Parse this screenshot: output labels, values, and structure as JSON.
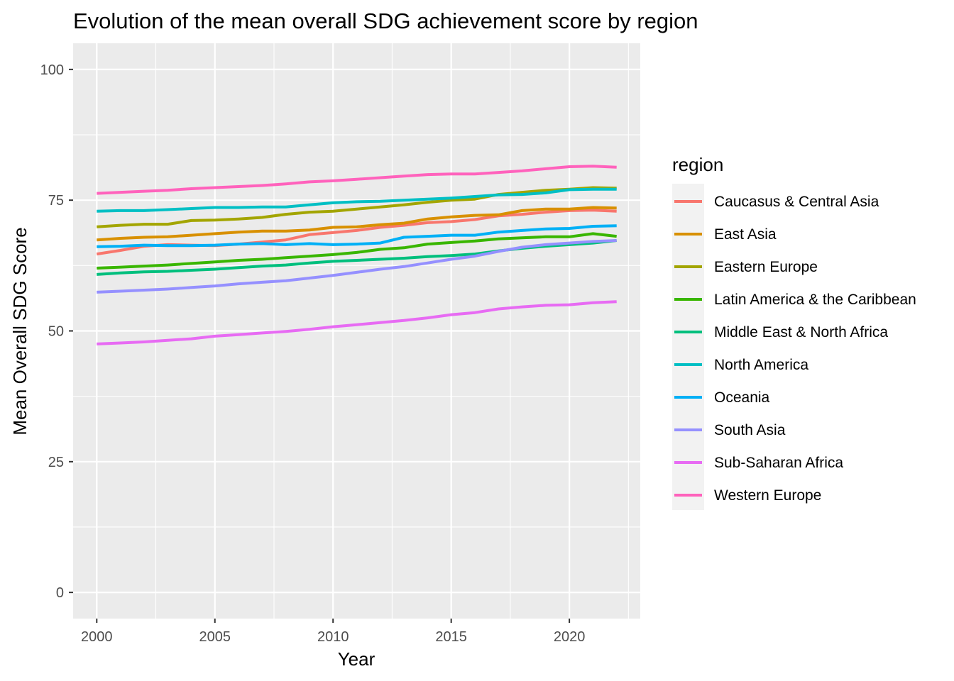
{
  "chart_data": {
    "type": "line",
    "title": "Evolution of the mean overall SDG achievement score by region",
    "xlabel": "Year",
    "ylabel": "Mean Overall SDG Score",
    "xlim": [
      1999,
      2023
    ],
    "ylim": [
      -5,
      105
    ],
    "x_ticks": [
      2000,
      2005,
      2010,
      2015,
      2020
    ],
    "y_ticks": [
      0,
      25,
      50,
      75,
      100
    ],
    "grid": true,
    "legend_title": "region",
    "legend_position": "right",
    "x": [
      2000,
      2001,
      2002,
      2003,
      2004,
      2005,
      2006,
      2007,
      2008,
      2009,
      2010,
      2011,
      2012,
      2013,
      2014,
      2015,
      2016,
      2017,
      2018,
      2019,
      2020,
      2021,
      2022
    ],
    "series": [
      {
        "name": "Caucasus & Central Asia",
        "color": "#F8766D",
        "values": [
          64.7,
          65.4,
          66.2,
          66.5,
          66.4,
          66.3,
          66.6,
          67.0,
          67.4,
          68.4,
          68.8,
          69.2,
          69.8,
          70.2,
          70.7,
          70.9,
          71.3,
          72.0,
          72.3,
          72.7,
          73.0,
          73.1,
          72.9
        ]
      },
      {
        "name": "East Asia",
        "color": "#D89000",
        "values": [
          67.4,
          67.7,
          67.9,
          68.0,
          68.3,
          68.6,
          68.9,
          69.1,
          69.1,
          69.3,
          69.8,
          69.9,
          70.3,
          70.6,
          71.4,
          71.8,
          72.1,
          72.2,
          73.0,
          73.3,
          73.3,
          73.6,
          73.5
        ]
      },
      {
        "name": "Eastern Europe",
        "color": "#A3A500",
        "values": [
          69.9,
          70.2,
          70.4,
          70.4,
          71.1,
          71.2,
          71.4,
          71.7,
          72.3,
          72.7,
          72.9,
          73.3,
          73.7,
          74.1,
          74.6,
          75.0,
          75.2,
          76.1,
          76.5,
          76.9,
          77.1,
          77.4,
          77.3
        ]
      },
      {
        "name": "Latin America & the Caribbean",
        "color": "#39B600",
        "values": [
          62.0,
          62.2,
          62.4,
          62.6,
          62.9,
          63.2,
          63.5,
          63.7,
          64.0,
          64.3,
          64.6,
          65.0,
          65.6,
          65.9,
          66.6,
          66.9,
          67.2,
          67.6,
          67.8,
          68.0,
          68.0,
          68.6,
          68.1
        ]
      },
      {
        "name": "Middle East & North Africa",
        "color": "#00BF7D",
        "values": [
          60.8,
          61.1,
          61.3,
          61.4,
          61.6,
          61.8,
          62.1,
          62.4,
          62.6,
          63.0,
          63.3,
          63.5,
          63.7,
          63.9,
          64.2,
          64.4,
          64.7,
          65.3,
          65.8,
          66.2,
          66.5,
          66.8,
          67.3
        ]
      },
      {
        "name": "North America",
        "color": "#00BFC4",
        "values": [
          72.9,
          73.0,
          73.0,
          73.2,
          73.4,
          73.6,
          73.6,
          73.7,
          73.7,
          74.1,
          74.5,
          74.7,
          74.8,
          75.0,
          75.2,
          75.4,
          75.7,
          76.0,
          76.1,
          76.4,
          77.0,
          77.1,
          77.1
        ]
      },
      {
        "name": "Oceania",
        "color": "#00B0F6",
        "values": [
          66.1,
          66.2,
          66.4,
          66.3,
          66.3,
          66.4,
          66.6,
          66.7,
          66.5,
          66.7,
          66.5,
          66.6,
          66.8,
          67.9,
          68.1,
          68.3,
          68.3,
          68.9,
          69.2,
          69.5,
          69.6,
          70.0,
          70.1
        ]
      },
      {
        "name": "South Asia",
        "color": "#9590FF",
        "values": [
          57.4,
          57.6,
          57.8,
          58.0,
          58.3,
          58.6,
          59.0,
          59.3,
          59.6,
          60.1,
          60.6,
          61.2,
          61.8,
          62.3,
          63.0,
          63.7,
          64.3,
          65.2,
          66.0,
          66.5,
          66.8,
          67.1,
          67.3
        ]
      },
      {
        "name": "Sub-Saharan Africa",
        "color": "#E76BF3",
        "values": [
          47.5,
          47.7,
          47.9,
          48.2,
          48.5,
          49.0,
          49.3,
          49.6,
          49.9,
          50.3,
          50.8,
          51.2,
          51.6,
          52.0,
          52.5,
          53.1,
          53.5,
          54.2,
          54.6,
          54.9,
          55.0,
          55.4,
          55.6
        ]
      },
      {
        "name": "Western Europe",
        "color": "#FF62BC",
        "values": [
          76.3,
          76.5,
          76.7,
          76.9,
          77.2,
          77.4,
          77.6,
          77.8,
          78.1,
          78.5,
          78.7,
          79.0,
          79.3,
          79.6,
          79.9,
          80.0,
          80.0,
          80.3,
          80.6,
          81.0,
          81.4,
          81.5,
          81.3
        ]
      }
    ]
  }
}
